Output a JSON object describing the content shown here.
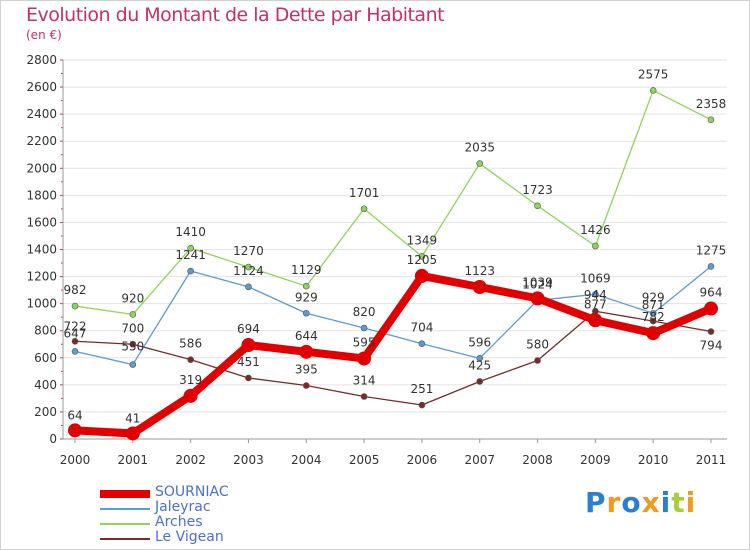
{
  "title": "Evolution du Montant de la Dette par Habitant",
  "subtitle": "(en €)",
  "logo": {
    "text": "Proxiti",
    "colors": [
      "#2a7fd4",
      "#f29a1f",
      "#2a7fd4",
      "#f29a1f",
      "#2a7fd4",
      "#a6cf3a",
      "#f29a1f"
    ]
  },
  "chart_data": {
    "type": "line",
    "x": [
      "2000",
      "2001",
      "2002",
      "2003",
      "2004",
      "2005",
      "2006",
      "2007",
      "2008",
      "2009",
      "2010",
      "2011"
    ],
    "ylim": [
      0,
      2800
    ],
    "yticks": [
      0,
      200,
      400,
      600,
      800,
      1000,
      1200,
      1400,
      1600,
      1800,
      2000,
      2200,
      2400,
      2600,
      2800
    ],
    "grid": "horizontal",
    "legend_position": "bottom-left",
    "series": [
      {
        "name": "SOURNIAC",
        "color": "#e00000",
        "values": [
          64,
          41,
          319,
          694,
          644,
          595,
          1205,
          1123,
          1039,
          877,
          782,
          964
        ],
        "labels": [
          "64",
          "41",
          "319",
          "694",
          "644",
          "595",
          "1205",
          "1123",
          "1039",
          "877",
          "782",
          "964"
        ]
      },
      {
        "name": "Jaleyrac",
        "color": "#5b9bd5",
        "values": [
          647,
          550,
          1241,
          1124,
          929,
          820,
          704,
          596,
          1024,
          1069,
          929,
          1275
        ],
        "labels": [
          "647",
          "550",
          "1241",
          "1124",
          "929",
          "820",
          "704",
          "596",
          "1024",
          "1069",
          "929",
          "1275"
        ]
      },
      {
        "name": "Arches",
        "color": "#8fd45a",
        "values": [
          982,
          920,
          1410,
          1270,
          1129,
          1701,
          1349,
          2035,
          1723,
          1426,
          2575,
          2358
        ],
        "labels": [
          "982",
          "920",
          "1410",
          "1270",
          "1129",
          "1701",
          "1349",
          "2035",
          "1723",
          "1426",
          "2575",
          "2358"
        ]
      },
      {
        "name": "Le Vigean",
        "color": "#7a2a2a",
        "values": [
          722,
          700,
          586,
          451,
          395,
          314,
          251,
          425,
          580,
          944,
          871,
          794
        ],
        "labels": [
          "722",
          "700",
          "586",
          "451",
          "395",
          "314",
          "251",
          "425",
          "580",
          "944",
          "871",
          "794"
        ]
      }
    ]
  }
}
